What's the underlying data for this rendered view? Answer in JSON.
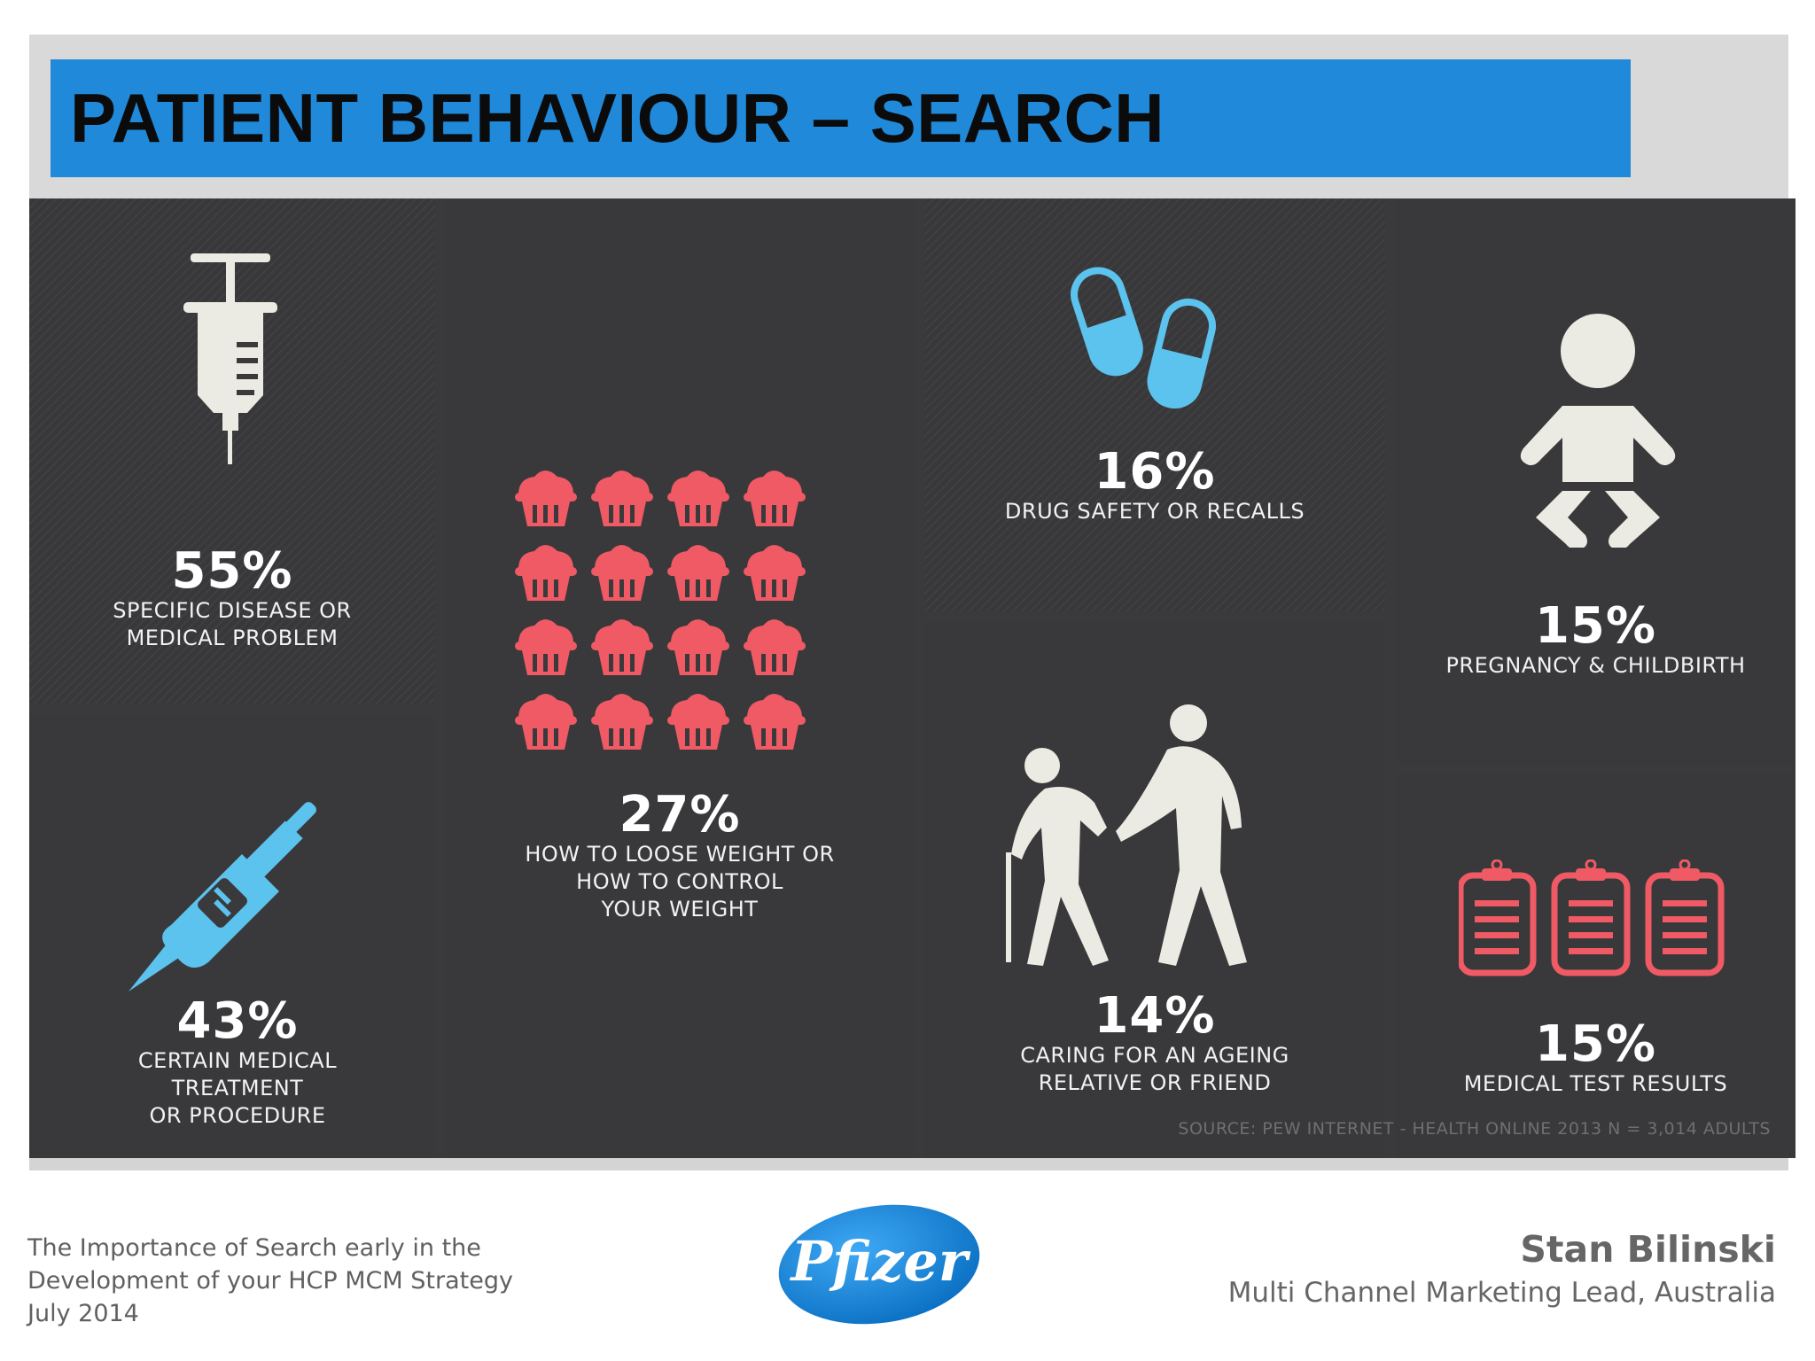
{
  "slide": {
    "title": "PATIENT BEHAVIOUR – SEARCH"
  },
  "stats": [
    {
      "id": "disease",
      "percent": "55%",
      "label": "SPECIFIC DISEASE OR\nMEDICAL PROBLEM",
      "icon": "syringe-icon"
    },
    {
      "id": "treatment",
      "percent": "43%",
      "label": "CERTAIN MEDICAL\nTREATMENT\nOR PROCEDURE",
      "icon": "injector-icon"
    },
    {
      "id": "weight",
      "percent": "27%",
      "label": "HOW TO LOOSE WEIGHT OR\nHOW TO CONTROL\nYOUR WEIGHT",
      "icon": "cupcake-icon"
    },
    {
      "id": "drugs",
      "percent": "16%",
      "label": "DRUG SAFETY OR RECALLS",
      "icon": "pill-icon"
    },
    {
      "id": "ageing",
      "percent": "14%",
      "label": "CARING FOR AN AGEING\nRELATIVE OR FRIEND",
      "icon": "elderly-people-icon"
    },
    {
      "id": "pregnancy",
      "percent": "15%",
      "label": "PREGNANCY & CHILDBIRTH",
      "icon": "baby-icon"
    },
    {
      "id": "tests",
      "percent": "15%",
      "label": "MEDICAL TEST RESULTS",
      "icon": "clipboard-icon"
    }
  ],
  "source": "SOURCE: PEW INTERNET - HEALTH ONLINE 2013 N = 3,014 ADULTS",
  "footer": {
    "presentation": "The Importance of Search early in the\nDevelopment of your HCP MCM Strategy\nJuly 2014",
    "presenter_name": "Stan Bilinski",
    "presenter_role": "Multi Channel Marketing Lead, Australia",
    "logo_text": "Pfizer"
  },
  "colors": {
    "title_bar": "#2089d9",
    "panel": "#3a3a3c",
    "icon_cream": "#ecebe3",
    "icon_blue": "#5cc2ee",
    "icon_red": "#ef5a64"
  }
}
